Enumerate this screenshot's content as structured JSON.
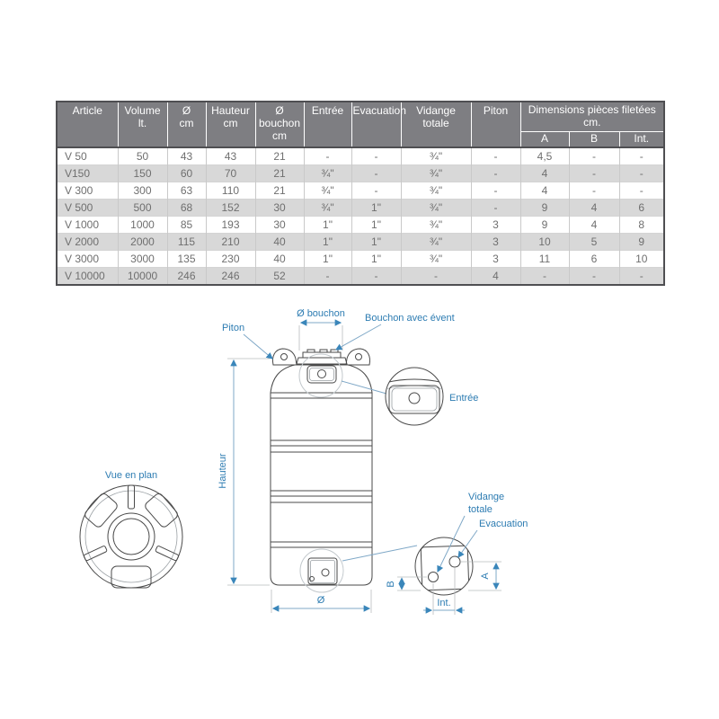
{
  "table": {
    "headers": [
      "Article",
      "Volume\nlt.",
      "Ø\ncm",
      "Hauteur\ncm",
      "Ø bouchon\ncm",
      "Entrée",
      "Evacuation",
      "Vidange\ntotale",
      "Piton"
    ],
    "group_header": "Dimensions pièces filetées cm.",
    "sub_headers": [
      "A",
      "B",
      "Int."
    ],
    "rows": [
      [
        "V 50",
        "50",
        "43",
        "43",
        "21",
        "-",
        "-",
        "¾\"",
        "-",
        "4,5",
        "-",
        "-"
      ],
      [
        "V150",
        "150",
        "60",
        "70",
        "21",
        "¾\"",
        "-",
        "¾\"",
        "-",
        "4",
        "-",
        "-"
      ],
      [
        "V 300",
        "300",
        "63",
        "110",
        "21",
        "¾\"",
        "-",
        "¾\"",
        "-",
        "4",
        "-",
        "-"
      ],
      [
        "V 500",
        "500",
        "68",
        "152",
        "30",
        "¾\"",
        "1\"",
        "¾\"",
        "-",
        "9",
        "4",
        "6"
      ],
      [
        "V 1000",
        "1000",
        "85",
        "193",
        "30",
        "1\"",
        "1\"",
        "¾\"",
        "3",
        "9",
        "4",
        "8"
      ],
      [
        "V 2000",
        "2000",
        "115",
        "210",
        "40",
        "1\"",
        "1\"",
        "¾\"",
        "3",
        "10",
        "5",
        "9"
      ],
      [
        "V 3000",
        "3000",
        "135",
        "230",
        "40",
        "1\"",
        "1\"",
        "¾\"",
        "3",
        "11",
        "6",
        "10"
      ],
      [
        "V 10000",
        "10000",
        "246",
        "246",
        "52",
        "-",
        "-",
        "-",
        "4",
        "-",
        "-",
        "-"
      ]
    ]
  },
  "diagram": {
    "labels": {
      "piton": "Piton",
      "o_bouchon": "Ø bouchon",
      "bouchon_avec_event": "Bouchon avec évent",
      "entree": "Entrée",
      "vue_en_plan": "Vue en plan",
      "hauteur": "Hauteur",
      "diametre": "Ø",
      "vidange_line1": "Vidange",
      "vidange_line2": "totale",
      "evacuation": "Evacuation",
      "dim_a": "A",
      "dim_b": "B",
      "dim_int": "Int."
    }
  },
  "colors": {
    "header_bg": "#7e7e82",
    "row_alt_bg": "#d8d8d8",
    "table_text": "#6f6f6f",
    "label_blue": "#2d7cb2",
    "dimension_line": "#7fa8c7",
    "drawing_line": "#4a4a4a"
  }
}
